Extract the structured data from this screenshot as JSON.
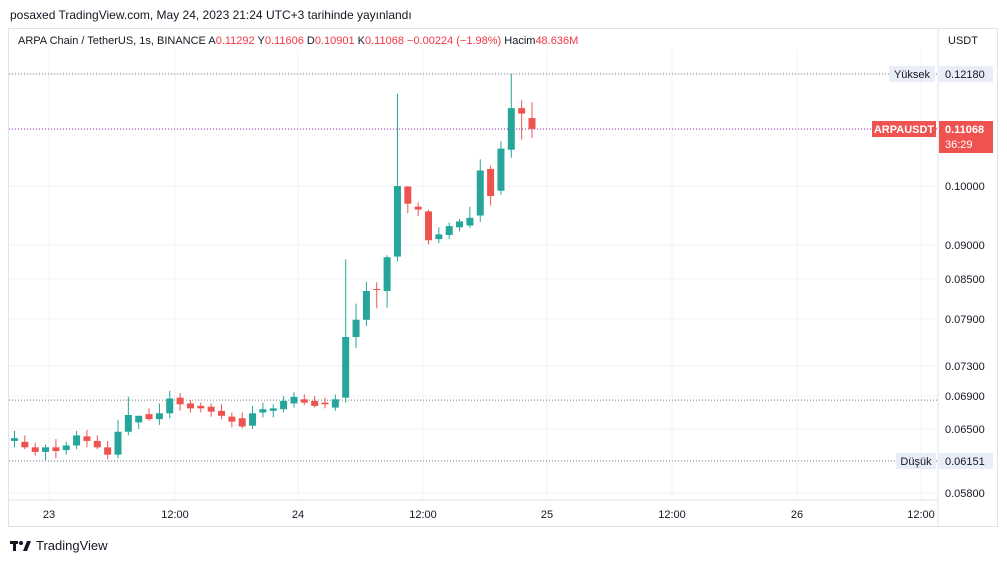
{
  "header": {
    "publish_line": "posaxed TradingView.com, May 24, 2023 21:24 UTC+3 tarihinde yayınlandı"
  },
  "legend": {
    "symbol": "ARPA Chain / TetherUS, 1s, BINANCE",
    "open_label": "A",
    "open": "0.11292",
    "high_label": "Y",
    "high": "0.11606",
    "low_label": "D",
    "low": "0.10901",
    "close_label": "K",
    "close": "0.11068",
    "change": "−0.00224 (−1.98%)",
    "volume_label": "Hacim",
    "volume": "48.636M"
  },
  "currency": "USDT",
  "badges": {
    "high_label": "Yüksek",
    "high_value": "0.12180",
    "low_label": "Düşük",
    "low_value": "0.06151",
    "ticker": "ARPAUSDT",
    "price": "0.11068",
    "countdown": "36:29"
  },
  "footer": {
    "brand": "TradingView"
  },
  "colors": {
    "up": "#26a69a",
    "down": "#ef5350",
    "grid": "#f0f3fa",
    "text": "#131722"
  },
  "chart_data": {
    "type": "candlestick",
    "y_ticks": [
      "0.05800",
      "0.06151",
      "0.06500",
      "0.06900",
      "0.07300",
      "0.07900",
      "0.08500",
      "0.09000",
      "0.10000",
      "0.11068",
      "0.12180"
    ],
    "x_ticks": [
      "23",
      "12:00",
      "24",
      "12:00",
      "25",
      "12:00",
      "26",
      "12:00"
    ],
    "high_line": 0.1218,
    "low_line": 0.06151,
    "prev_level": 0.0685,
    "last_price": 0.11068,
    "candles": [
      {
        "o": 0.0637,
        "h": 0.0648,
        "l": 0.063,
        "c": 0.064
      },
      {
        "o": 0.0636,
        "h": 0.0643,
        "l": 0.0628,
        "c": 0.063
      },
      {
        "o": 0.063,
        "h": 0.0635,
        "l": 0.0621,
        "c": 0.0625
      },
      {
        "o": 0.0625,
        "h": 0.0633,
        "l": 0.0616,
        "c": 0.063
      },
      {
        "o": 0.063,
        "h": 0.0639,
        "l": 0.0618,
        "c": 0.0626
      },
      {
        "o": 0.0627,
        "h": 0.0636,
        "l": 0.0622,
        "c": 0.0632
      },
      {
        "o": 0.0632,
        "h": 0.0648,
        "l": 0.0628,
        "c": 0.0643
      },
      {
        "o": 0.0642,
        "h": 0.0649,
        "l": 0.063,
        "c": 0.0637
      },
      {
        "o": 0.0637,
        "h": 0.0643,
        "l": 0.0628,
        "c": 0.063
      },
      {
        "o": 0.063,
        "h": 0.0637,
        "l": 0.0617,
        "c": 0.0622
      },
      {
        "o": 0.0622,
        "h": 0.0661,
        "l": 0.0618,
        "c": 0.0647
      },
      {
        "o": 0.0647,
        "h": 0.0689,
        "l": 0.0643,
        "c": 0.0667
      },
      {
        "o": 0.0658,
        "h": 0.0666,
        "l": 0.065,
        "c": 0.0666
      },
      {
        "o": 0.0668,
        "h": 0.0675,
        "l": 0.066,
        "c": 0.0662
      },
      {
        "o": 0.0662,
        "h": 0.0681,
        "l": 0.0655,
        "c": 0.0669
      },
      {
        "o": 0.0669,
        "h": 0.0697,
        "l": 0.0663,
        "c": 0.0687
      },
      {
        "o": 0.0688,
        "h": 0.0694,
        "l": 0.0672,
        "c": 0.068
      },
      {
        "o": 0.0681,
        "h": 0.0685,
        "l": 0.067,
        "c": 0.0675
      },
      {
        "o": 0.0678,
        "h": 0.0682,
        "l": 0.067,
        "c": 0.0675
      },
      {
        "o": 0.0677,
        "h": 0.0681,
        "l": 0.0665,
        "c": 0.0671
      },
      {
        "o": 0.0672,
        "h": 0.068,
        "l": 0.0662,
        "c": 0.0666
      },
      {
        "o": 0.0665,
        "h": 0.067,
        "l": 0.0652,
        "c": 0.0659
      },
      {
        "o": 0.0663,
        "h": 0.067,
        "l": 0.0651,
        "c": 0.0653
      },
      {
        "o": 0.0654,
        "h": 0.0678,
        "l": 0.065,
        "c": 0.0669
      },
      {
        "o": 0.067,
        "h": 0.0682,
        "l": 0.0664,
        "c": 0.0674
      },
      {
        "o": 0.0672,
        "h": 0.068,
        "l": 0.0664,
        "c": 0.0675
      },
      {
        "o": 0.0674,
        "h": 0.069,
        "l": 0.067,
        "c": 0.0684
      },
      {
        "o": 0.0681,
        "h": 0.0695,
        "l": 0.0676,
        "c": 0.0689
      },
      {
        "o": 0.0686,
        "h": 0.0692,
        "l": 0.0679,
        "c": 0.0682
      },
      {
        "o": 0.0684,
        "h": 0.069,
        "l": 0.0676,
        "c": 0.0678
      },
      {
        "o": 0.0682,
        "h": 0.0688,
        "l": 0.0675,
        "c": 0.068
      },
      {
        "o": 0.0676,
        "h": 0.0692,
        "l": 0.0672,
        "c": 0.0686
      },
      {
        "o": 0.0688,
        "h": 0.0879,
        "l": 0.0682,
        "c": 0.0767
      },
      {
        "o": 0.0767,
        "h": 0.0813,
        "l": 0.0753,
        "c": 0.0789
      },
      {
        "o": 0.0789,
        "h": 0.0846,
        "l": 0.0781,
        "c": 0.0832
      },
      {
        "o": 0.0835,
        "h": 0.0845,
        "l": 0.0806,
        "c": 0.0834
      },
      {
        "o": 0.0832,
        "h": 0.0885,
        "l": 0.0807,
        "c": 0.0882
      },
      {
        "o": 0.0883,
        "h": 0.1178,
        "l": 0.0876,
        "c": 0.1
      },
      {
        "o": 0.0999,
        "h": 0.1,
        "l": 0.0954,
        "c": 0.097
      },
      {
        "o": 0.0965,
        "h": 0.0972,
        "l": 0.0949,
        "c": 0.096
      },
      {
        "o": 0.0957,
        "h": 0.096,
        "l": 0.0901,
        "c": 0.0908
      },
      {
        "o": 0.091,
        "h": 0.093,
        "l": 0.0903,
        "c": 0.0918
      },
      {
        "o": 0.0917,
        "h": 0.0938,
        "l": 0.091,
        "c": 0.0932
      },
      {
        "o": 0.093,
        "h": 0.0944,
        "l": 0.0923,
        "c": 0.094
      },
      {
        "o": 0.0933,
        "h": 0.0965,
        "l": 0.0929,
        "c": 0.0946
      },
      {
        "o": 0.095,
        "h": 0.105,
        "l": 0.0939,
        "c": 0.1029
      },
      {
        "o": 0.1032,
        "h": 0.1038,
        "l": 0.0967,
        "c": 0.0983
      },
      {
        "o": 0.0992,
        "h": 0.1084,
        "l": 0.0985,
        "c": 0.107
      },
      {
        "o": 0.1068,
        "h": 0.1218,
        "l": 0.1053,
        "c": 0.1149
      },
      {
        "o": 0.1149,
        "h": 0.1165,
        "l": 0.1087,
        "c": 0.1138
      },
      {
        "o": 0.1129,
        "h": 0.1161,
        "l": 0.109,
        "c": 0.1107
      }
    ]
  }
}
